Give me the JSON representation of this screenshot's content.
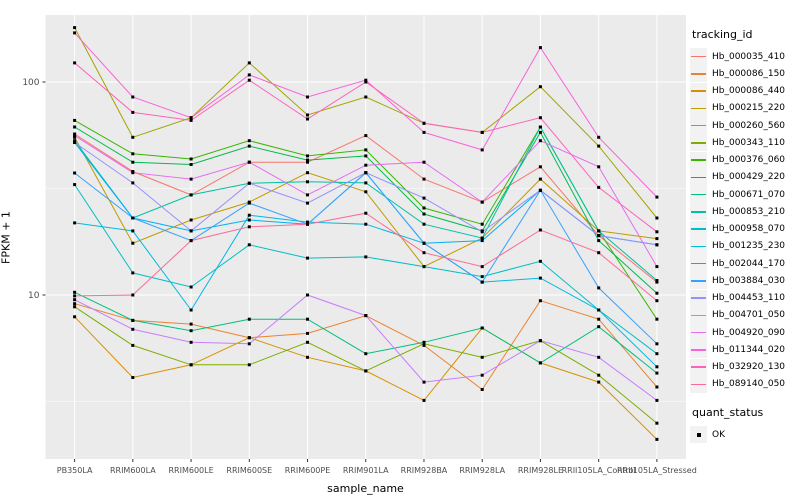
{
  "figure": {
    "background": "#FFFFFF",
    "panel_background": "#EBEBEB",
    "grid_color": "#FFFFFF",
    "tick_color": "#333333",
    "tick_label_color": "#4D4D4D",
    "axis_title_color": "#000000",
    "legend_key_background": "#F2F2F2"
  },
  "chart_data": {
    "type": "line",
    "title": "",
    "xlabel": "sample_name",
    "ylabel": "FPKM + 1",
    "y_scale": "log10",
    "ylim": [
      1.7,
      210
    ],
    "y_ticks": [
      100,
      10
    ],
    "y_minor_gridlines": [
      31.6,
      3.16
    ],
    "grid": true,
    "legend_position": "right",
    "legend_title": "tracking_id",
    "point_marker": "black-square",
    "categories": [
      "PB350LA",
      "RRIM600LA",
      "RRIM600LE",
      "RRIM600SE",
      "RRIM600PE",
      "RRIM901LA",
      "RRIM928BA",
      "RRIM928LA",
      "RRIM928LE",
      "RRII105LA_Control",
      "RRII105LA_Stressed"
    ],
    "series": [
      {
        "name": "Hb_000035_410",
        "color": "#F8766D",
        "values": [
          57,
          38,
          29.5,
          42,
          42,
          56,
          35,
          27.3,
          40,
          19,
          11.5
        ]
      },
      {
        "name": "Hb_000086_150",
        "color": "#EA8331",
        "values": [
          9.1,
          7.6,
          7.3,
          6.3,
          6.6,
          8.0,
          5.8,
          3.6,
          9.4,
          7.7,
          3.7
        ]
      },
      {
        "name": "Hb_000086_440",
        "color": "#D89000",
        "values": [
          7.9,
          4.1,
          4.7,
          6.3,
          5.1,
          4.4,
          3.2,
          7.0,
          4.8,
          3.9,
          2.1
        ]
      },
      {
        "name": "Hb_000215_220",
        "color": "#C09B00",
        "values": [
          55,
          17.5,
          22.5,
          27.3,
          37.5,
          30.5,
          13.6,
          18.5,
          35,
          20,
          18.4
        ]
      },
      {
        "name": "Hb_000260_560",
        "color": "#A3A500",
        "values": [
          180,
          55,
          68,
          123,
          70,
          85,
          64,
          58,
          95,
          50,
          23
        ]
      },
      {
        "name": "Hb_000343_110",
        "color": "#7CAE00",
        "values": [
          8.8,
          5.8,
          4.7,
          4.7,
          6.0,
          4.4,
          5.9,
          5.1,
          6.1,
          4.2,
          2.5
        ]
      },
      {
        "name": "Hb_000376_060",
        "color": "#39B600",
        "values": [
          66,
          46,
          43.5,
          53,
          45,
          48,
          25.6,
          21.5,
          61.5,
          20,
          7.7
        ]
      },
      {
        "name": "Hb_000429_220",
        "color": "#00BB4E",
        "values": [
          61.5,
          42,
          41,
          50,
          43,
          45,
          24,
          20,
          58,
          18,
          10.2
        ]
      },
      {
        "name": "Hb_000671_070",
        "color": "#00BF7D",
        "values": [
          10.3,
          7.6,
          6.8,
          7.7,
          7.7,
          5.3,
          6.0,
          7.0,
          4.8,
          7.1,
          4.3
        ]
      },
      {
        "name": "Hb_000853_210",
        "color": "#00C1A3",
        "values": [
          53,
          23,
          29.5,
          33.5,
          34,
          33.6,
          21.5,
          18.5,
          61.5,
          20,
          11.7
        ]
      },
      {
        "name": "Hb_000958_070",
        "color": "#00BFC4",
        "values": [
          33,
          12.7,
          10.9,
          17.2,
          14.9,
          15.1,
          13.6,
          12.2,
          14.4,
          8.5,
          5.3
        ]
      },
      {
        "name": "Hb_001235_230",
        "color": "#00BAE0",
        "values": [
          21.8,
          20,
          8.5,
          23.7,
          22,
          21.5,
          17.5,
          11.5,
          12.0,
          8.5,
          4.6
        ]
      },
      {
        "name": "Hb_002044_170",
        "color": "#00B0F6",
        "values": [
          52,
          23,
          20,
          22.5,
          21.5,
          37.5,
          17.5,
          18,
          31,
          19,
          17.2
        ]
      },
      {
        "name": "Hb_003884_030",
        "color": "#35A2FF",
        "values": [
          37.4,
          23,
          18,
          27,
          21.5,
          37.5,
          17.5,
          11.5,
          31,
          10.8,
          5.9
        ]
      },
      {
        "name": "Hb_004453_110",
        "color": "#9590FF",
        "values": [
          52,
          33.6,
          20,
          33.5,
          27,
          37.5,
          28.5,
          19.8,
          31,
          19,
          17.2
        ]
      },
      {
        "name": "Hb_004701_050",
        "color": "#C77CFF",
        "values": [
          9.5,
          6.9,
          6.0,
          5.9,
          10,
          8.0,
          3.9,
          4.2,
          6.1,
          5.1,
          3.2
        ]
      },
      {
        "name": "Hb_004920_090",
        "color": "#E76BF3",
        "values": [
          56,
          37.5,
          35,
          42,
          29.5,
          40.7,
          42,
          27.3,
          53,
          40,
          13.6
        ]
      },
      {
        "name": "Hb_011344_020",
        "color": "#FA62DB",
        "values": [
          170,
          85,
          68,
          108,
          85,
          102,
          58,
          48,
          145,
          55,
          28.8
        ]
      },
      {
        "name": "Hb_032920_130",
        "color": "#FF62BC",
        "values": [
          123,
          72,
          66,
          102,
          67,
          100,
          64,
          58,
          68,
          32,
          19.8
        ]
      },
      {
        "name": "Hb_089140_050",
        "color": "#FF6A98",
        "values": [
          9.9,
          10,
          18,
          20.9,
          21.5,
          24.2,
          15.8,
          13.6,
          20.2,
          15.8,
          9.4
        ]
      }
    ],
    "quant_legend": {
      "title": "quant_status",
      "items": [
        {
          "label": "OK",
          "marker": "black-square"
        }
      ]
    }
  }
}
